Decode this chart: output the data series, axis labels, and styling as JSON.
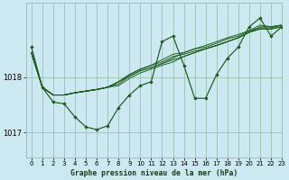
{
  "title": "Graphe pression niveau de la mer (hPa)",
  "background_color": "#cce8f0",
  "grid_color": "#99c4b0",
  "line_color": "#1a5c1a",
  "marker_color": "#1a5c1a",
  "xlim": [
    -0.5,
    23
  ],
  "ylim": [
    1016.55,
    1019.35
  ],
  "yticks": [
    1017,
    1018
  ],
  "xticks": [
    0,
    1,
    2,
    3,
    4,
    5,
    6,
    7,
    8,
    9,
    10,
    11,
    12,
    13,
    14,
    15,
    16,
    17,
    18,
    19,
    20,
    21,
    22,
    23
  ],
  "forecast_lines": [
    [
      1018.45,
      1017.82,
      1017.68,
      1017.68,
      1017.72,
      1017.75,
      1017.78,
      1017.82,
      1017.92,
      1018.02,
      1018.12,
      1018.18,
      1018.25,
      1018.32,
      1018.38,
      1018.45,
      1018.52,
      1018.58,
      1018.65,
      1018.72,
      1018.82,
      1018.88,
      1018.88,
      1018.92
    ],
    [
      1018.45,
      1017.82,
      1017.68,
      1017.68,
      1017.72,
      1017.75,
      1017.78,
      1017.82,
      1017.92,
      1018.05,
      1018.15,
      1018.22,
      1018.32,
      1018.42,
      1018.45,
      1018.52,
      1018.55,
      1018.62,
      1018.7,
      1018.75,
      1018.85,
      1018.9,
      1018.9,
      1018.95
    ],
    [
      1018.45,
      1017.82,
      1017.68,
      1017.68,
      1017.72,
      1017.75,
      1017.78,
      1017.82,
      1017.92,
      1018.05,
      1018.15,
      1018.22,
      1018.28,
      1018.38,
      1018.42,
      1018.48,
      1018.52,
      1018.58,
      1018.65,
      1018.72,
      1018.82,
      1018.88,
      1018.88,
      1018.92
    ],
    [
      1018.45,
      1017.82,
      1017.68,
      1017.68,
      1017.72,
      1017.75,
      1017.78,
      1017.82,
      1017.85,
      1017.98,
      1018.08,
      1018.15,
      1018.22,
      1018.28,
      1018.38,
      1018.45,
      1018.52,
      1018.58,
      1018.65,
      1018.72,
      1018.82,
      1018.92,
      1018.92,
      1018.95
    ],
    [
      1018.45,
      1017.82,
      1017.68,
      1017.68,
      1017.72,
      1017.75,
      1017.78,
      1017.82,
      1017.88,
      1018.02,
      1018.12,
      1018.18,
      1018.25,
      1018.35,
      1018.45,
      1018.52,
      1018.58,
      1018.65,
      1018.72,
      1018.78,
      1018.85,
      1018.95,
      1018.92,
      1018.95
    ]
  ],
  "main_series": [
    1018.55,
    1017.82,
    1017.55,
    1017.52,
    1017.28,
    1017.1,
    1017.05,
    1017.12,
    1017.45,
    1017.68,
    1017.85,
    1017.92,
    1018.65,
    1018.75,
    1018.22,
    1017.62,
    1017.62,
    1018.05,
    1018.35,
    1018.55,
    1018.92,
    1019.08,
    1018.75,
    1018.92
  ]
}
